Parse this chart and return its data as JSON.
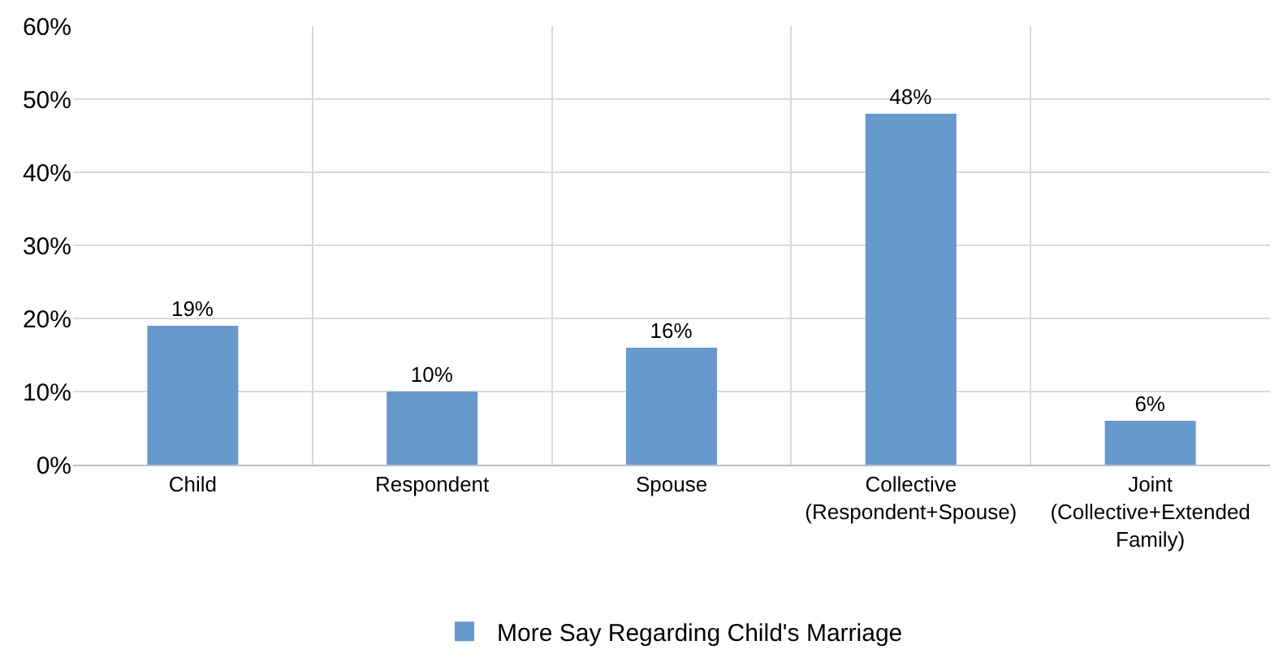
{
  "chart_data": {
    "type": "bar",
    "categories": [
      "Child",
      "Respondent",
      "Spouse",
      "Collective\n(Respondent+Spouse)",
      "Joint\n(Collective+Extended\nFamily)"
    ],
    "series": [
      {
        "name": "More Say Regarding Child's Marriage",
        "color": "#6699cc",
        "values": [
          19,
          10,
          16,
          48,
          6
        ],
        "value_labels": [
          "19%",
          "10%",
          "16%",
          "48%",
          "6%"
        ]
      }
    ],
    "ylim": [
      0,
      60
    ],
    "yticks": [
      {
        "value": 0,
        "label": "0%"
      },
      {
        "value": 10,
        "label": "10%"
      },
      {
        "value": 20,
        "label": "20%"
      },
      {
        "value": 30,
        "label": "30%"
      },
      {
        "value": 40,
        "label": "40%"
      },
      {
        "value": 50,
        "label": "50%"
      },
      {
        "value": 60,
        "label": "60%"
      }
    ],
    "grid": true,
    "legend": "bottom"
  }
}
